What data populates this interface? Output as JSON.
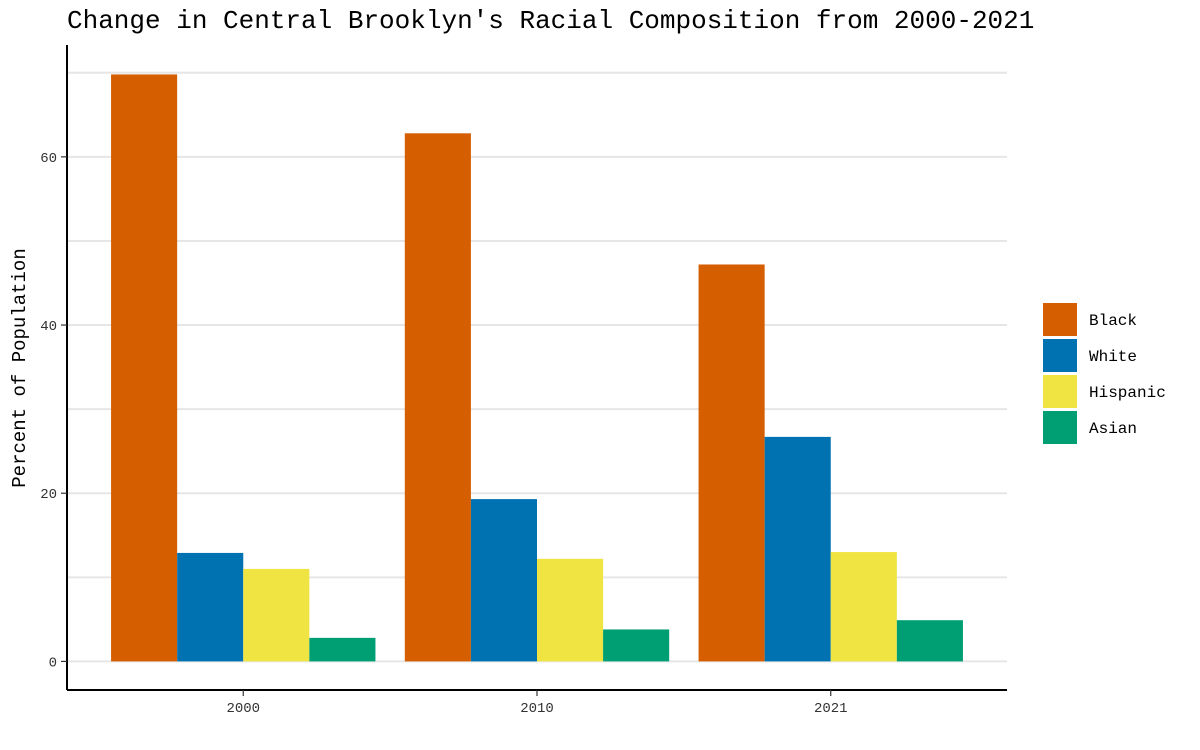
{
  "chart_data": {
    "type": "bar",
    "title": "Change in Central Brooklyn's Racial Composition from 2000-2021",
    "xlabel": "",
    "ylabel": "Percent of Population",
    "categories": [
      "2000",
      "2010",
      "2021"
    ],
    "series": [
      {
        "name": "Black",
        "color": "#D55E00",
        "values": [
          69.8,
          62.8,
          47.2
        ]
      },
      {
        "name": "White",
        "color": "#0072B2",
        "values": [
          12.9,
          19.3,
          26.7
        ]
      },
      {
        "name": "Hispanic",
        "color": "#F0E442",
        "values": [
          11.0,
          12.2,
          13.0
        ]
      },
      {
        "name": "Asian",
        "color": "#009E73",
        "values": [
          2.8,
          3.8,
          4.9
        ]
      }
    ],
    "ylim": [
      -3.4,
      73.3
    ],
    "yticks": [
      0,
      20,
      40,
      60
    ],
    "grid": true,
    "legend_position": "right"
  }
}
